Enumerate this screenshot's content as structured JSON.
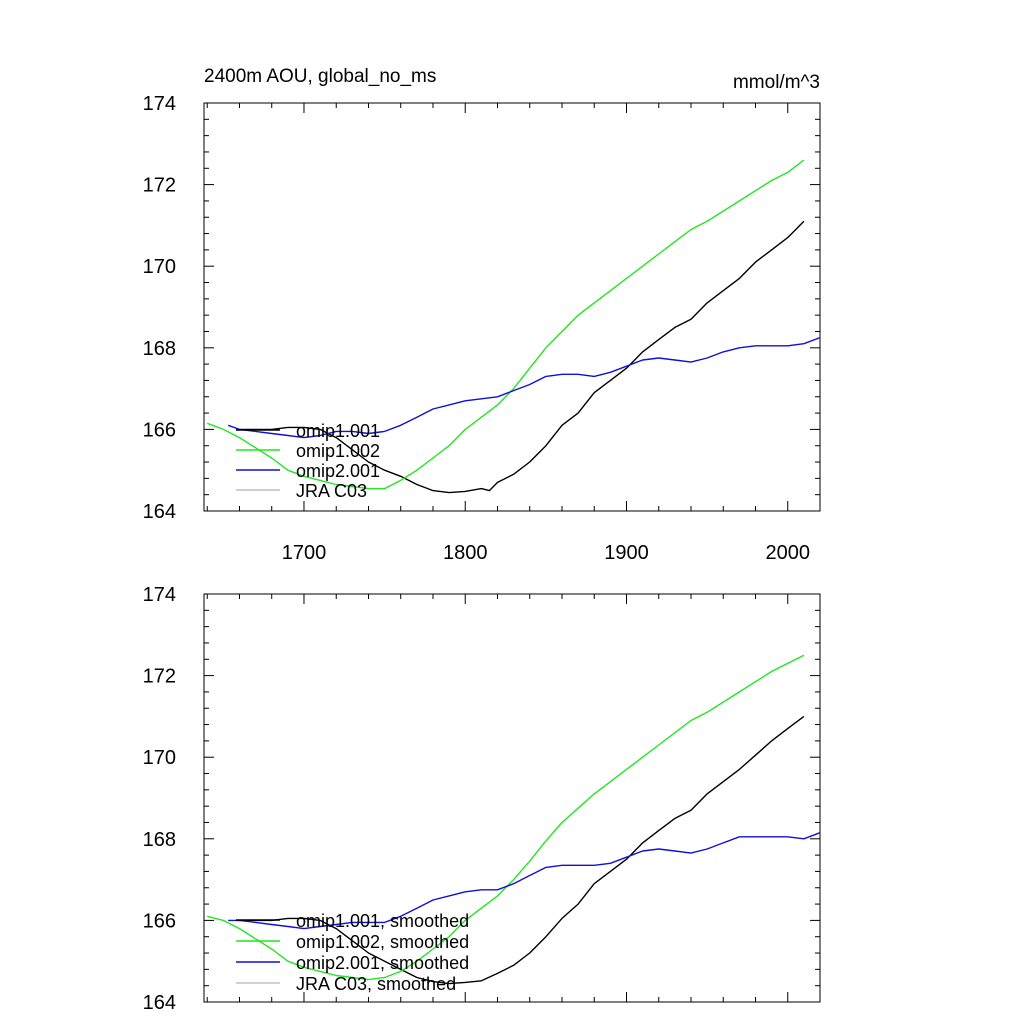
{
  "header": {
    "title": "2400m AOU, global_no_ms",
    "units": "mmol/m^3"
  },
  "colors": {
    "omip1_001": "#000000",
    "omip1_002": "#22e622",
    "omip2_001": "#1010d8",
    "jra_c03": "#c0c0c0"
  },
  "chart_data": [
    {
      "type": "line",
      "title": "2400m AOU, global_no_ms",
      "units_label": "mmol/m^3",
      "xlim": [
        1638,
        2020
      ],
      "ylim": [
        164,
        174
      ],
      "x_ticks": [
        1700,
        1800,
        1900,
        2000
      ],
      "x_tick_labels": [
        "1700",
        "1800",
        "1900",
        "2000"
      ],
      "y_ticks": [
        164,
        166,
        168,
        170,
        172,
        174
      ],
      "y_tick_labels": [
        "164",
        "166",
        "168",
        "170",
        "172",
        "174"
      ],
      "legend_position": "bottom-left",
      "series": [
        {
          "name": "omip1.001",
          "color": "#000000",
          "x": [
            1658,
            1670,
            1680,
            1690,
            1700,
            1710,
            1720,
            1730,
            1740,
            1750,
            1760,
            1770,
            1780,
            1790,
            1800,
            1810,
            1815,
            1820,
            1830,
            1840,
            1850,
            1860,
            1870,
            1880,
            1890,
            1900,
            1910,
            1920,
            1930,
            1940,
            1950,
            1960,
            1970,
            1980,
            1990,
            2000,
            2005,
            2010
          ],
          "y": [
            166.0,
            166.0,
            166.0,
            166.05,
            166.05,
            166.0,
            165.8,
            165.5,
            165.2,
            165.0,
            164.85,
            164.65,
            164.5,
            164.45,
            164.48,
            164.55,
            164.5,
            164.7,
            164.9,
            165.2,
            165.6,
            166.1,
            166.4,
            166.9,
            167.2,
            167.5,
            167.9,
            168.2,
            168.5,
            168.7,
            169.1,
            169.4,
            169.7,
            170.1,
            170.4,
            170.7,
            170.9,
            171.1
          ]
        },
        {
          "name": "omip1.002",
          "color": "#22e622",
          "x": [
            1640,
            1650,
            1660,
            1670,
            1680,
            1690,
            1700,
            1710,
            1720,
            1730,
            1740,
            1750,
            1760,
            1770,
            1780,
            1790,
            1800,
            1810,
            1820,
            1830,
            1840,
            1850,
            1860,
            1870,
            1880,
            1890,
            1900,
            1910,
            1920,
            1930,
            1940,
            1950,
            1960,
            1970,
            1980,
            1990,
            2000,
            2010
          ],
          "y": [
            166.15,
            166.0,
            165.8,
            165.55,
            165.3,
            165.0,
            164.85,
            164.75,
            164.65,
            164.6,
            164.55,
            164.55,
            164.75,
            165.0,
            165.3,
            165.6,
            166.0,
            166.3,
            166.6,
            167.0,
            167.5,
            168.0,
            168.4,
            168.8,
            169.1,
            169.4,
            169.7,
            170.0,
            170.3,
            170.6,
            170.9,
            171.1,
            171.35,
            171.6,
            171.85,
            172.1,
            172.3,
            172.6
          ]
        },
        {
          "name": "omip2.001",
          "color": "#1010d8",
          "x": [
            1653,
            1660,
            1670,
            1680,
            1690,
            1700,
            1710,
            1720,
            1730,
            1740,
            1750,
            1760,
            1770,
            1780,
            1790,
            1800,
            1810,
            1820,
            1830,
            1840,
            1850,
            1860,
            1870,
            1880,
            1890,
            1900,
            1910,
            1920,
            1930,
            1940,
            1950,
            1960,
            1970,
            1980,
            1990,
            2000,
            2010,
            2020
          ],
          "y": [
            166.1,
            166.0,
            165.95,
            165.9,
            165.85,
            165.8,
            165.85,
            165.95,
            165.95,
            165.9,
            165.95,
            166.1,
            166.3,
            166.5,
            166.6,
            166.7,
            166.75,
            166.8,
            166.95,
            167.1,
            167.3,
            167.35,
            167.35,
            167.3,
            167.4,
            167.55,
            167.7,
            167.75,
            167.7,
            167.65,
            167.75,
            167.9,
            168.0,
            168.05,
            168.05,
            168.05,
            168.1,
            168.25
          ]
        },
        {
          "name": "JRA C03",
          "color": "#c0c0c0",
          "x": [],
          "y": []
        }
      ]
    },
    {
      "type": "line",
      "xlim": [
        1638,
        2020
      ],
      "ylim": [
        164,
        174
      ],
      "x_ticks": [
        1700,
        1800,
        1900,
        2000
      ],
      "y_ticks": [
        164,
        166,
        168,
        170,
        172,
        174
      ],
      "y_tick_labels": [
        "164",
        "166",
        "168",
        "170",
        "172",
        "174"
      ],
      "legend_position": "bottom-left",
      "series": [
        {
          "name": "omip1.001, smoothed",
          "color": "#000000",
          "x": [
            1658,
            1670,
            1680,
            1690,
            1700,
            1710,
            1720,
            1730,
            1740,
            1750,
            1760,
            1770,
            1780,
            1790,
            1800,
            1810,
            1820,
            1830,
            1840,
            1850,
            1860,
            1870,
            1880,
            1890,
            1900,
            1910,
            1920,
            1930,
            1940,
            1950,
            1960,
            1970,
            1980,
            1990,
            2000,
            2010
          ],
          "y": [
            166.0,
            166.0,
            166.0,
            166.05,
            166.05,
            166.0,
            165.8,
            165.5,
            165.2,
            165.0,
            164.8,
            164.6,
            164.5,
            164.45,
            164.48,
            164.52,
            164.7,
            164.9,
            165.2,
            165.6,
            166.05,
            166.4,
            166.9,
            167.2,
            167.5,
            167.9,
            168.2,
            168.5,
            168.7,
            169.1,
            169.4,
            169.7,
            170.05,
            170.4,
            170.7,
            171.0
          ]
        },
        {
          "name": "omip1.002, smoothed",
          "color": "#22e622",
          "x": [
            1640,
            1650,
            1660,
            1670,
            1680,
            1690,
            1700,
            1710,
            1720,
            1730,
            1740,
            1750,
            1760,
            1770,
            1780,
            1790,
            1800,
            1810,
            1820,
            1830,
            1840,
            1850,
            1860,
            1870,
            1880,
            1890,
            1900,
            1910,
            1920,
            1930,
            1940,
            1950,
            1960,
            1970,
            1980,
            1990,
            2000,
            2010
          ],
          "y": [
            166.1,
            166.0,
            165.8,
            165.55,
            165.3,
            165.0,
            164.85,
            164.75,
            164.65,
            164.6,
            164.55,
            164.6,
            164.75,
            165.0,
            165.3,
            165.6,
            166.0,
            166.3,
            166.6,
            167.0,
            167.45,
            167.95,
            168.4,
            168.75,
            169.1,
            169.4,
            169.7,
            170.0,
            170.3,
            170.6,
            170.9,
            171.1,
            171.35,
            171.6,
            171.85,
            172.1,
            172.3,
            172.5
          ]
        },
        {
          "name": "omip2.001, smoothed",
          "color": "#1010d8",
          "x": [
            1653,
            1660,
            1670,
            1680,
            1690,
            1700,
            1710,
            1720,
            1730,
            1740,
            1750,
            1760,
            1770,
            1780,
            1790,
            1800,
            1810,
            1820,
            1830,
            1840,
            1850,
            1860,
            1870,
            1880,
            1890,
            1900,
            1910,
            1920,
            1930,
            1940,
            1950,
            1960,
            1970,
            1980,
            1990,
            2000,
            2010,
            2020
          ],
          "y": [
            166.0,
            166.0,
            165.95,
            165.9,
            165.85,
            165.8,
            165.85,
            165.9,
            165.95,
            165.95,
            165.95,
            166.1,
            166.3,
            166.5,
            166.6,
            166.7,
            166.75,
            166.75,
            166.9,
            167.1,
            167.3,
            167.35,
            167.35,
            167.35,
            167.4,
            167.55,
            167.7,
            167.75,
            167.7,
            167.65,
            167.75,
            167.9,
            168.05,
            168.05,
            168.05,
            168.05,
            168.0,
            168.15
          ]
        },
        {
          "name": "JRA C03, smoothed",
          "color": "#c0c0c0",
          "x": [],
          "y": []
        }
      ]
    }
  ]
}
